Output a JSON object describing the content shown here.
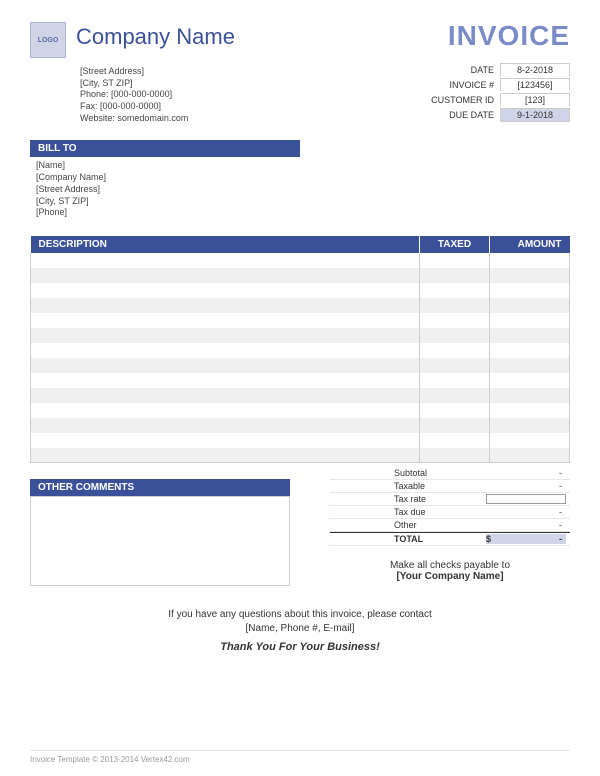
{
  "header": {
    "logo_text": "LOGO",
    "company_name": "Company Name",
    "invoice_title": "INVOICE"
  },
  "company": {
    "street": "[Street Address]",
    "city": "[City, ST  ZIP]",
    "phone": "Phone: [000-000-0000]",
    "fax": "Fax: [000-000-0000]",
    "website": "Website: somedomain.com"
  },
  "meta": {
    "date_label": "DATE",
    "date_value": "8-2-2018",
    "invoice_label": "INVOICE #",
    "invoice_value": "[123456]",
    "customer_label": "CUSTOMER ID",
    "customer_value": "[123]",
    "due_label": "DUE DATE",
    "due_value": "9-1-2018"
  },
  "billto": {
    "header": "BILL TO",
    "name": "[Name]",
    "company": "[Company Name]",
    "street": "[Street Address]",
    "city": "[City, ST  ZIP]",
    "phone": "[Phone]"
  },
  "items": {
    "columns": {
      "description": "DESCRIPTION",
      "taxed": "TAXED",
      "amount": "AMOUNT"
    },
    "row_count": 14,
    "stripe_color": "#f0f0f0",
    "border_color": "#cccccc",
    "header_bg": "#3a5199"
  },
  "totals": {
    "subtotal_label": "Subtotal",
    "subtotal_val": "-",
    "taxable_label": "Taxable",
    "taxable_val": "-",
    "taxrate_label": "Tax rate",
    "taxrate_val": "",
    "taxdue_label": "Tax due",
    "taxdue_val": "-",
    "other_label": "Other",
    "other_val": "-",
    "total_label": "TOTAL",
    "total_currency": "$",
    "total_val": "-"
  },
  "comments": {
    "header": "OTHER COMMENTS"
  },
  "payable": {
    "line1": "Make all checks payable to",
    "line2": "[Your Company Name]"
  },
  "contact": {
    "line1": "If you have any questions about this invoice, please contact",
    "line2": "[Name, Phone #, E-mail]",
    "thanks": "Thank You For Your Business!"
  },
  "footer": "Invoice Template © 2013-2014 Vertex42.com",
  "colors": {
    "brand": "#3a5199",
    "brand_light": "#7a8cc8",
    "highlight": "#d0d4e8"
  }
}
